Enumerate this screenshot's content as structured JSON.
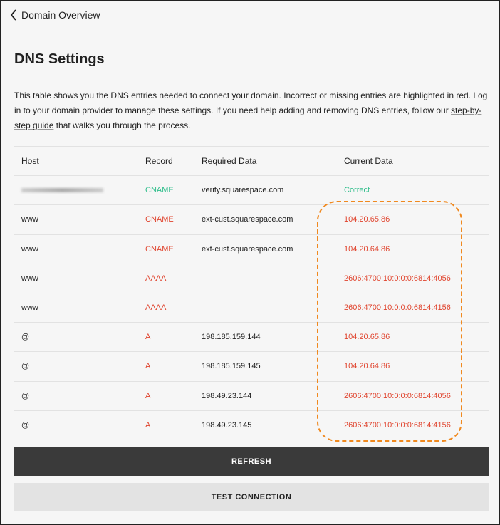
{
  "nav": {
    "back_label": "Domain Overview"
  },
  "title": "DNS Settings",
  "description": {
    "text": "This table shows you the DNS entries needed to connect your domain. Incorrect or missing entries are highlighted in red. Log in to your domain provider to manage these settings. If you need help adding and removing DNS entries, follow our ",
    "link": "step-by-step guide",
    "suffix": " that walks you through the process."
  },
  "table": {
    "headers": [
      "Host",
      "Record",
      "Required Data",
      "Current Data"
    ],
    "rows": [
      {
        "host": "",
        "record": "CNAME",
        "required": "verify.squarespace.com",
        "current": "Correct",
        "status": "ok"
      },
      {
        "host": "www",
        "record": "CNAME",
        "required": "ext-cust.squarespace.com",
        "current": "104.20.65.86",
        "status": "error"
      },
      {
        "host": "www",
        "record": "CNAME",
        "required": "ext-cust.squarespace.com",
        "current": "104.20.64.86",
        "status": "error"
      },
      {
        "host": "www",
        "record": "AAAA",
        "required": "",
        "current": "2606:4700:10:0:0:0:6814:4056",
        "status": "error"
      },
      {
        "host": "www",
        "record": "AAAA",
        "required": "",
        "current": "2606:4700:10:0:0:0:6814:4156",
        "status": "error"
      },
      {
        "host": "@",
        "record": "A",
        "required": "198.185.159.144",
        "current": "104.20.65.86",
        "status": "error"
      },
      {
        "host": "@",
        "record": "A",
        "required": "198.185.159.145",
        "current": "104.20.64.86",
        "status": "error"
      },
      {
        "host": "@",
        "record": "A",
        "required": "198.49.23.144",
        "current": "2606:4700:10:0:0:0:6814:4056",
        "status": "error"
      },
      {
        "host": "@",
        "record": "A",
        "required": "198.49.23.145",
        "current": "2606:4700:10:0:0:0:6814:4156",
        "status": "error"
      }
    ]
  },
  "buttons": {
    "refresh": "REFRESH",
    "test": "TEST CONNECTION"
  },
  "colors": {
    "error": "#e0442e",
    "ok": "#2dbd8a",
    "highlight": "#f0891f"
  }
}
